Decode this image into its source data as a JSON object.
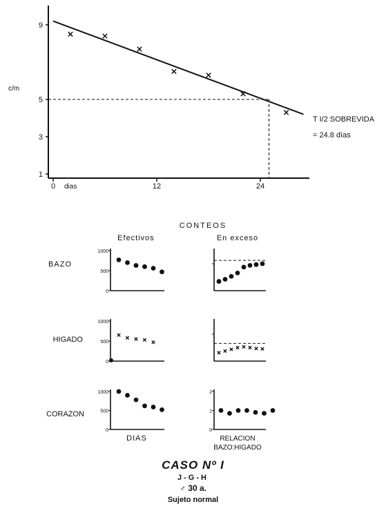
{
  "chart_data": [
    {
      "type": "scatter",
      "title": "",
      "xlabel": "dias",
      "ylabel": "c/m",
      "xlim": [
        0,
        30
      ],
      "ylim": [
        1,
        10
      ],
      "x_ticks": [
        0,
        12,
        24
      ],
      "y_ticks": [
        1,
        3,
        5,
        9
      ],
      "points": {
        "x": [
          2,
          6,
          10,
          14,
          18,
          22,
          27
        ],
        "y": [
          8.5,
          8.4,
          7.7,
          6.5,
          6.3,
          5.3,
          4.3
        ]
      },
      "fit_line": {
        "x": [
          0,
          29
        ],
        "y": [
          9.2,
          4.2
        ]
      },
      "half_life_marker": {
        "x": 25,
        "y": 5
      },
      "annotation_lines": [
        "T I/2 SOBREVIDA",
        "= 24.8 días"
      ]
    },
    {
      "type": "scatter",
      "panel": "bazo-efectivos",
      "y_ticks": [
        0,
        500,
        1000
      ],
      "points": {
        "x": [
          1,
          2,
          3,
          4,
          5,
          6
        ],
        "y": [
          770,
          700,
          630,
          600,
          560,
          470
        ]
      }
    },
    {
      "type": "scatter",
      "panel": "bazo-exceso",
      "reference_line": 0.72,
      "points": {
        "x": [
          1,
          2,
          3,
          4,
          5,
          6,
          7,
          8
        ],
        "y": [
          0.22,
          0.27,
          0.34,
          0.42,
          0.56,
          0.6,
          0.62,
          0.64
        ]
      }
    },
    {
      "type": "scatter",
      "panel": "higado-efectivos",
      "y_ticks": [
        0,
        500,
        1000
      ],
      "points": {
        "x": [
          1,
          2,
          3,
          4,
          5
        ],
        "y": [
          650,
          580,
          550,
          530,
          470
        ]
      },
      "isolated_point": {
        "x": 0,
        "y": 20
      }
    },
    {
      "type": "scatter",
      "panel": "higado-exceso",
      "reference_line": 0.42,
      "points": {
        "x": [
          1,
          2,
          3,
          4,
          5,
          6,
          7,
          8
        ],
        "y": [
          0.2,
          0.24,
          0.28,
          0.32,
          0.34,
          0.32,
          0.3,
          0.29
        ]
      }
    },
    {
      "type": "scatter",
      "panel": "corazon-efectivos",
      "y_ticks": [
        0,
        500,
        1000
      ],
      "points": {
        "x": [
          1,
          2,
          3,
          4,
          5,
          6
        ],
        "y": [
          1000,
          900,
          780,
          620,
          590,
          520
        ]
      }
    },
    {
      "type": "scatter",
      "panel": "corazon-relacion",
      "y_ticks": [
        0,
        1,
        2
      ],
      "points": {
        "x": [
          1,
          2,
          3,
          4,
          5,
          6,
          7
        ],
        "y": [
          1.0,
          0.85,
          1.0,
          1.0,
          0.9,
          0.85,
          1.0
        ]
      }
    }
  ],
  "labels": {
    "conteos": "CONTEOS",
    "efectivos": "Efectivos",
    "en_exceso": "En exceso",
    "rows": [
      "BAZO",
      "HIGADO",
      "CORAZON"
    ],
    "dias": "DIAS",
    "relacion_1": "RELACION",
    "relacion_2": "BAZO:HIGADO",
    "tick_1000": "1000",
    "tick_500": "500",
    "tick_0": "0",
    "tick_2": "2",
    "tick_1": "1"
  },
  "footer": {
    "caso": "CASO Nº I",
    "iniciales": "J-G-H",
    "sexo_edad": "♂  30 a.",
    "sujeto": "Sujeto normal"
  }
}
